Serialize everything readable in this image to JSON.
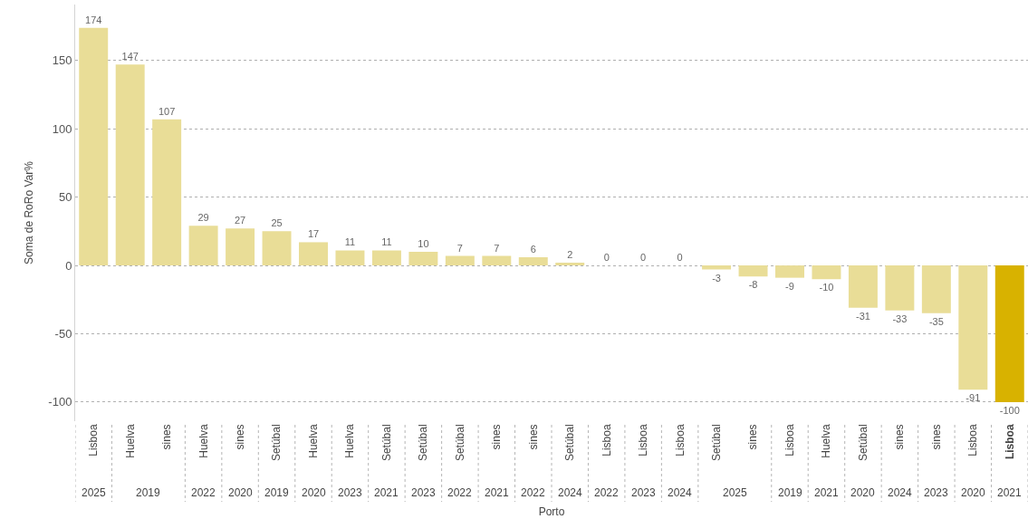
{
  "chart_data": {
    "type": "bar",
    "xlabel": "Porto",
    "ylabel": "Soma de RoRo Var%",
    "categories": [
      "Lisboa",
      "Huelva",
      "sines",
      "Huelva",
      "sines",
      "Setúbal",
      "Huelva",
      "Huelva",
      "Setúbal",
      "Setúbal",
      "Setúbal",
      "sines",
      "sines",
      "Setúbal",
      "Lisboa",
      "Lisboa",
      "Lisboa",
      "Setúbal",
      "sines",
      "Lisboa",
      "Huelva",
      "Setúbal",
      "sines",
      "sines",
      "Lisboa",
      "Lisboa"
    ],
    "values": [
      174,
      147,
      107,
      29,
      27,
      25,
      17,
      11,
      11,
      10,
      7,
      7,
      6,
      2,
      0,
      0,
      0,
      -3,
      -8,
      -9,
      -10,
      -31,
      -33,
      -35,
      -91,
      -100
    ],
    "colors": [
      "#e9dd97",
      "#e9dd97",
      "#e9dd97",
      "#e9dd97",
      "#e9dd97",
      "#e9dd97",
      "#e9dd97",
      "#e9dd97",
      "#e9dd97",
      "#e9dd97",
      "#e9dd97",
      "#e9dd97",
      "#e9dd97",
      "#e9dd97",
      "#e9dd97",
      "#e9dd97",
      "#e9dd97",
      "#e9dd97",
      "#e9dd97",
      "#e9dd97",
      "#e9dd97",
      "#e9dd97",
      "#e9dd97",
      "#e9dd97",
      "#e9dd97",
      "#d8b200"
    ],
    "data_labels": true,
    "ylim": [
      -114,
      191
    ],
    "yticks": [
      -100,
      -50,
      0,
      50,
      100,
      150
    ],
    "grid": "y",
    "annotations": [
      "2025",
      "2019",
      "2022",
      "2020",
      "2019",
      "2020",
      "2023",
      "2021",
      "2023",
      "2022",
      "2021",
      "2022",
      "2024",
      "2022",
      "2023",
      "2024",
      "2025",
      "2019",
      "2021",
      "2020",
      "2024",
      "2023",
      "2020",
      "2021"
    ]
  }
}
